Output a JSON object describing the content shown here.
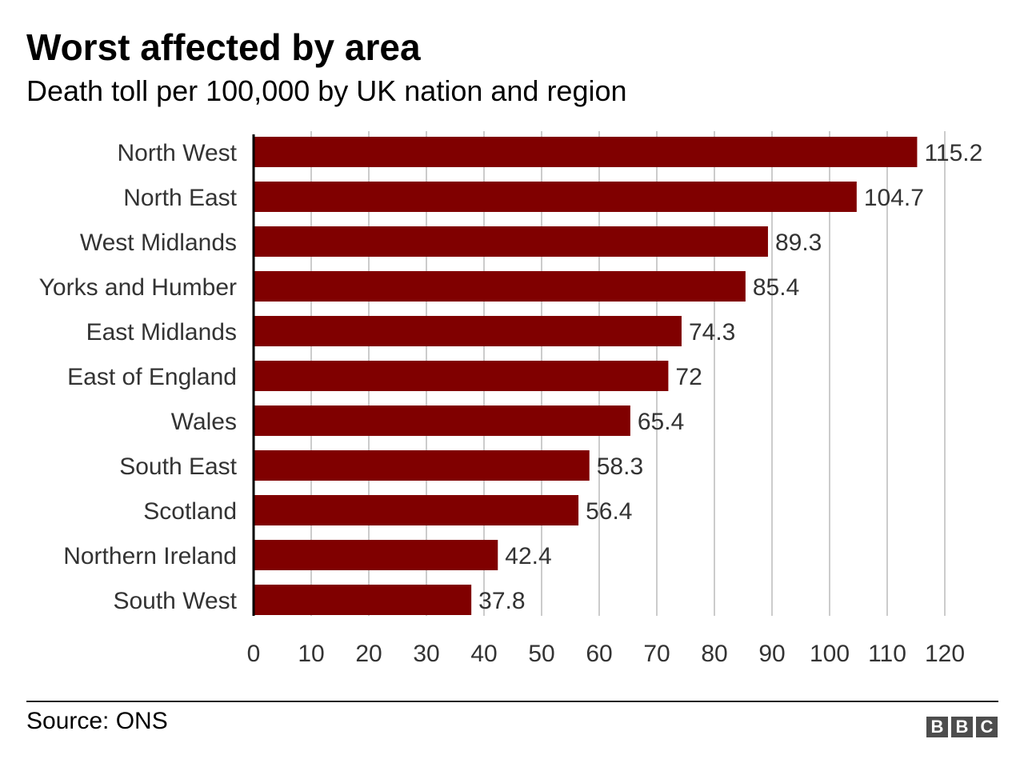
{
  "chart_data": {
    "type": "bar",
    "orientation": "horizontal",
    "title": "Worst affected by area",
    "subtitle": "Death toll per 100,000 by UK nation and region",
    "categories": [
      "North West",
      "North East",
      "West Midlands",
      "Yorks and Humber",
      "East Midlands",
      "East of England",
      "Wales",
      "South East",
      "Scotland",
      "Northern Ireland",
      "South West"
    ],
    "values": [
      115.2,
      104.7,
      89.3,
      85.4,
      74.3,
      72,
      65.4,
      58.3,
      56.4,
      42.4,
      37.8
    ],
    "value_labels": [
      "115.2",
      "104.7",
      "89.3",
      "85.4",
      "74.3",
      "72",
      "65.4",
      "58.3",
      "56.4",
      "42.4",
      "37.8"
    ],
    "x_ticks": [
      0,
      10,
      20,
      30,
      40,
      50,
      60,
      70,
      80,
      90,
      100,
      110,
      120
    ],
    "xlim": [
      0,
      120
    ],
    "grid": "vertical",
    "bar_color": "#800000"
  },
  "footer": {
    "source": "Source: ONS",
    "logo_letters": [
      "B",
      "B",
      "C"
    ]
  }
}
